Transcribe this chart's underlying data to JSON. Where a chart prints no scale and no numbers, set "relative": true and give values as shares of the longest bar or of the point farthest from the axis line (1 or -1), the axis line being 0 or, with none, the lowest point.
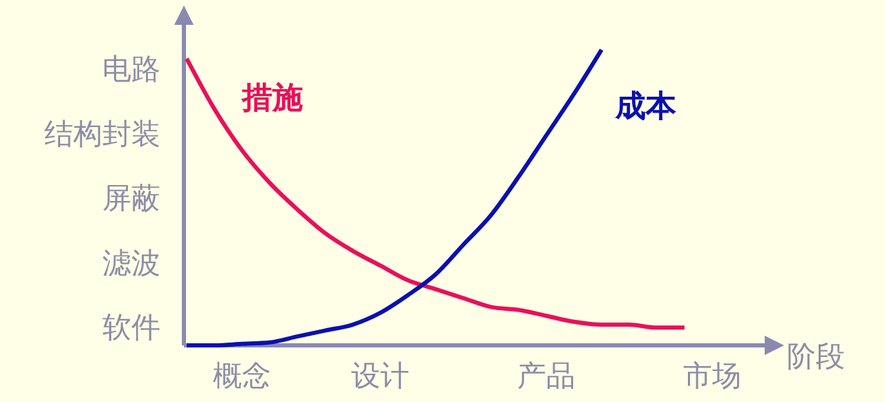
{
  "chart_data": {
    "type": "line",
    "relative": true,
    "xlabel": "阶段",
    "categories": [
      null,
      null,
      "概念",
      null,
      null,
      null,
      null,
      "设计",
      null,
      null,
      null,
      null,
      null,
      "产品",
      null,
      null,
      null,
      null,
      null,
      "市场"
    ],
    "annotations": [
      "电路",
      "结构封装",
      "屏蔽",
      "滤波",
      "软件"
    ],
    "marker": "none",
    "series": [
      {
        "name": "措施",
        "color": "#e8105a",
        "values": [
          0.97,
          0.8,
          0.66,
          0.55,
          0.46,
          0.38,
          0.32,
          0.27,
          0.22,
          0.19,
          0.16,
          0.13,
          0.12,
          0.1,
          0.08,
          0.07,
          0.07,
          0.06,
          0.06,
          null
        ]
      },
      {
        "name": "成本",
        "color": "#0a10b0",
        "values": [
          0,
          0,
          0.005,
          0.01,
          0.03,
          0.05,
          0.07,
          0.11,
          0.17,
          0.24,
          0.34,
          0.44,
          0.57,
          0.71,
          0.85,
          1,
          null,
          null,
          null,
          null
        ]
      }
    ]
  }
}
